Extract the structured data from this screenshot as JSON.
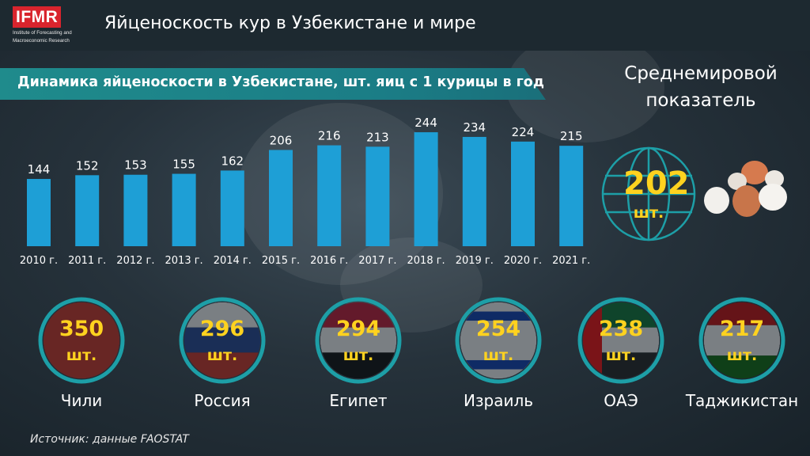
{
  "header": {
    "logo_text": "IFMR",
    "logo_subtitle_line1": "Institute of Forecasting and",
    "logo_subtitle_line2": "Macroeconomic Research",
    "title": "Яйценоскость кур в Узбекистане и мире"
  },
  "colors": {
    "bar": "#1e9fd6",
    "highlight": "#ffd21f",
    "banner": "#1f8b8c",
    "logo_red": "#d9242d"
  },
  "chart_data": {
    "type": "bar",
    "title": "Динамика яйценоскости в Узбекистане, шт. яиц с 1 курицы в год",
    "categories": [
      "2010 г.",
      "2011 г.",
      "2012 г.",
      "2013 г.",
      "2014 г.",
      "2015 г.",
      "2016 г.",
      "2017 г.",
      "2018 г.",
      "2019 г.",
      "2020 г.",
      "2021 г."
    ],
    "values": [
      144,
      152,
      153,
      155,
      162,
      206,
      216,
      213,
      244,
      234,
      224,
      215
    ],
    "xlabel": "",
    "ylabel": "",
    "grid": false
  },
  "world_average": {
    "title": "Среднемировой показатель",
    "value": "202",
    "unit": "шт.",
    "icon": "globe-icon",
    "image": "eggs-illustration"
  },
  "countries": [
    {
      "name": "Чили",
      "value": "350",
      "unit": "шт.",
      "flag_icon": "chile-flag-icon"
    },
    {
      "name": "Россия",
      "value": "296",
      "unit": "шт.",
      "flag_icon": "russia-flag-icon"
    },
    {
      "name": "Египет",
      "value": "294",
      "unit": "шт.",
      "flag_icon": "egypt-flag-icon"
    },
    {
      "name": "Израиль",
      "value": "254",
      "unit": "шт.",
      "flag_icon": "israel-flag-icon"
    },
    {
      "name": "ОАЭ",
      "value": "238",
      "unit": "шт.",
      "flag_icon": "uae-flag-icon"
    },
    {
      "name": "Таджикистан",
      "value": "217",
      "unit": "шт.",
      "flag_icon": "tajikistan-flag-icon"
    }
  ],
  "source": "Источник: данные FAOSTAT"
}
